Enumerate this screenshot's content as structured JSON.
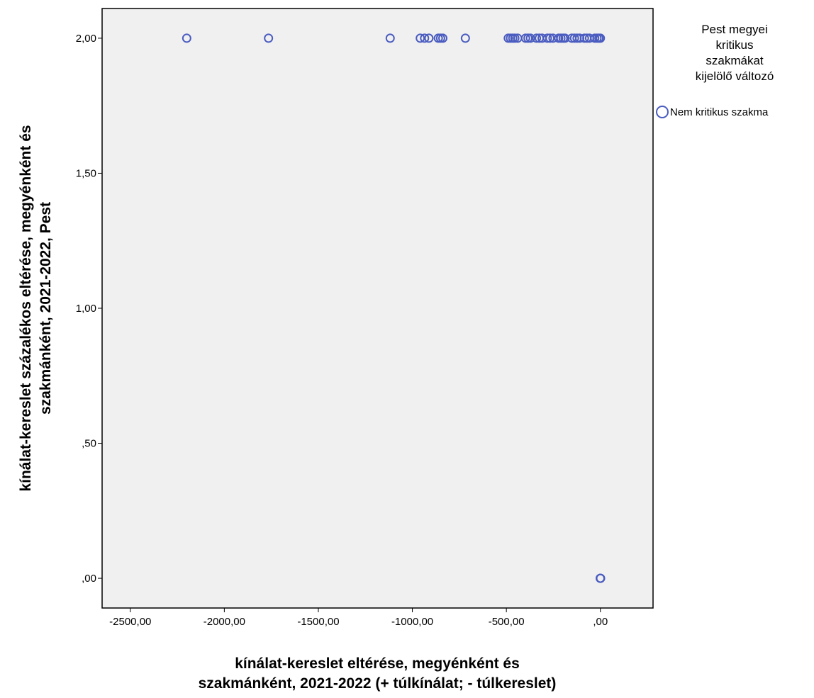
{
  "chart_data": {
    "type": "scatter",
    "title": "",
    "xlabel": [
      "kínálat-kereslet eltérése, megyénként és",
      "szakmánként, 2021-2022 (+ túlkínálat; - túlkereslet)"
    ],
    "ylabel": [
      "kínálat-kereslet százalékos eltérése, megyénként és",
      "szakmánként, 2021-2022, Pest"
    ],
    "xlim": [
      -2650,
      280
    ],
    "ylim": [
      -0.11,
      2.11
    ],
    "x_ticks": [
      -2500,
      -2000,
      -1500,
      -1000,
      -500,
      0
    ],
    "x_tick_labels": [
      "-2500,00",
      "-2000,00",
      "-1500,00",
      "-1000,00",
      "-500,00",
      ",00"
    ],
    "y_ticks": [
      0,
      0.5,
      1,
      1.5,
      2
    ],
    "y_tick_labels": [
      ",00",
      ",50",
      "1,00",
      "1,50",
      "2,00"
    ],
    "grid": false,
    "legend": {
      "title": [
        "Pest megyei",
        "kritikus",
        "szakmákat",
        "kijelölő változó"
      ],
      "placement": "right",
      "entries": [
        {
          "label": "Nem kritikus szakma",
          "marker": "hollow-circle"
        }
      ]
    },
    "series": [
      {
        "name": "Nem kritikus szakma",
        "color": "#4a5cc0",
        "marker": "hollow-circle",
        "points": [
          {
            "x": -2200,
            "y": 2.0
          },
          {
            "x": -1765,
            "y": 2.0
          },
          {
            "x": -1118,
            "y": 2.0
          },
          {
            "x": -958,
            "y": 2.0
          },
          {
            "x": -935,
            "y": 2.0
          },
          {
            "x": -912,
            "y": 2.0
          },
          {
            "x": -862,
            "y": 2.0
          },
          {
            "x": -850,
            "y": 2.0
          },
          {
            "x": -838,
            "y": 2.0
          },
          {
            "x": -718,
            "y": 2.0
          },
          {
            "x": -490,
            "y": 2.0
          },
          {
            "x": -478,
            "y": 2.0
          },
          {
            "x": -466,
            "y": 2.0
          },
          {
            "x": -455,
            "y": 2.0
          },
          {
            "x": -440,
            "y": 2.0
          },
          {
            "x": -398,
            "y": 2.0
          },
          {
            "x": -385,
            "y": 2.0
          },
          {
            "x": -372,
            "y": 2.0
          },
          {
            "x": -340,
            "y": 2.0
          },
          {
            "x": -325,
            "y": 2.0
          },
          {
            "x": -310,
            "y": 2.0
          },
          {
            "x": -282,
            "y": 2.0
          },
          {
            "x": -268,
            "y": 2.0
          },
          {
            "x": -252,
            "y": 2.0
          },
          {
            "x": -222,
            "y": 2.0
          },
          {
            "x": -210,
            "y": 2.0
          },
          {
            "x": -198,
            "y": 2.0
          },
          {
            "x": -188,
            "y": 2.0
          },
          {
            "x": -152,
            "y": 2.0
          },
          {
            "x": -138,
            "y": 2.0
          },
          {
            "x": -124,
            "y": 2.0
          },
          {
            "x": -110,
            "y": 2.0
          },
          {
            "x": -85,
            "y": 2.0
          },
          {
            "x": -72,
            "y": 2.0
          },
          {
            "x": -58,
            "y": 2.0
          },
          {
            "x": -30,
            "y": 2.0
          },
          {
            "x": -18,
            "y": 2.0
          },
          {
            "x": -8,
            "y": 2.0
          },
          {
            "x": 0,
            "y": 2.0
          },
          {
            "x": 0,
            "y": 0.0
          },
          {
            "x": 1,
            "y": 0.0
          },
          {
            "x": -1,
            "y": 0.0
          }
        ]
      }
    ]
  }
}
